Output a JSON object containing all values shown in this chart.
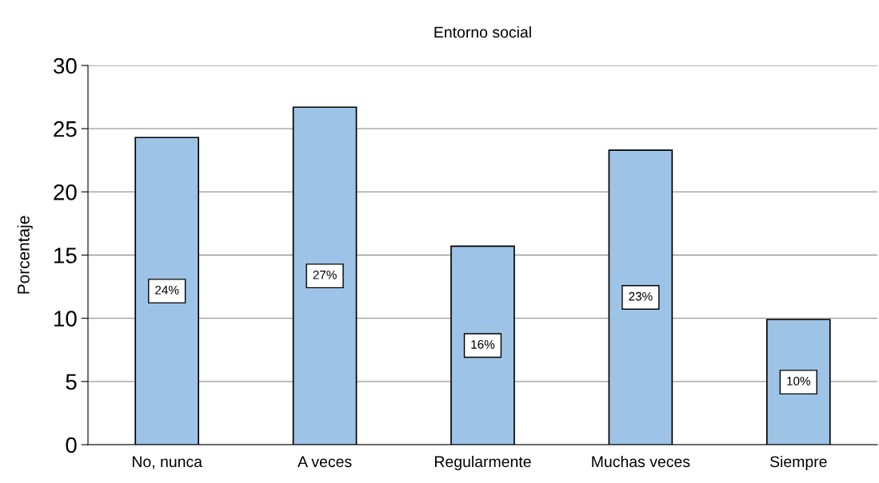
{
  "chart_data": {
    "type": "bar",
    "title": "Entorno social",
    "ylabel": "Porcentaje",
    "categories": [
      "No, nunca",
      "A veces",
      "Regularmente",
      "Muchas veces",
      "Siempre"
    ],
    "values": [
      24.3,
      26.7,
      15.7,
      23.3,
      9.9
    ],
    "value_labels": [
      "24%",
      "27%",
      "16%",
      "23%",
      "10%"
    ],
    "color": "#9dc3e6",
    "ylim": [
      0,
      30
    ],
    "yticks": [
      0,
      5,
      10,
      15,
      20,
      25,
      30
    ],
    "grid": "y"
  }
}
